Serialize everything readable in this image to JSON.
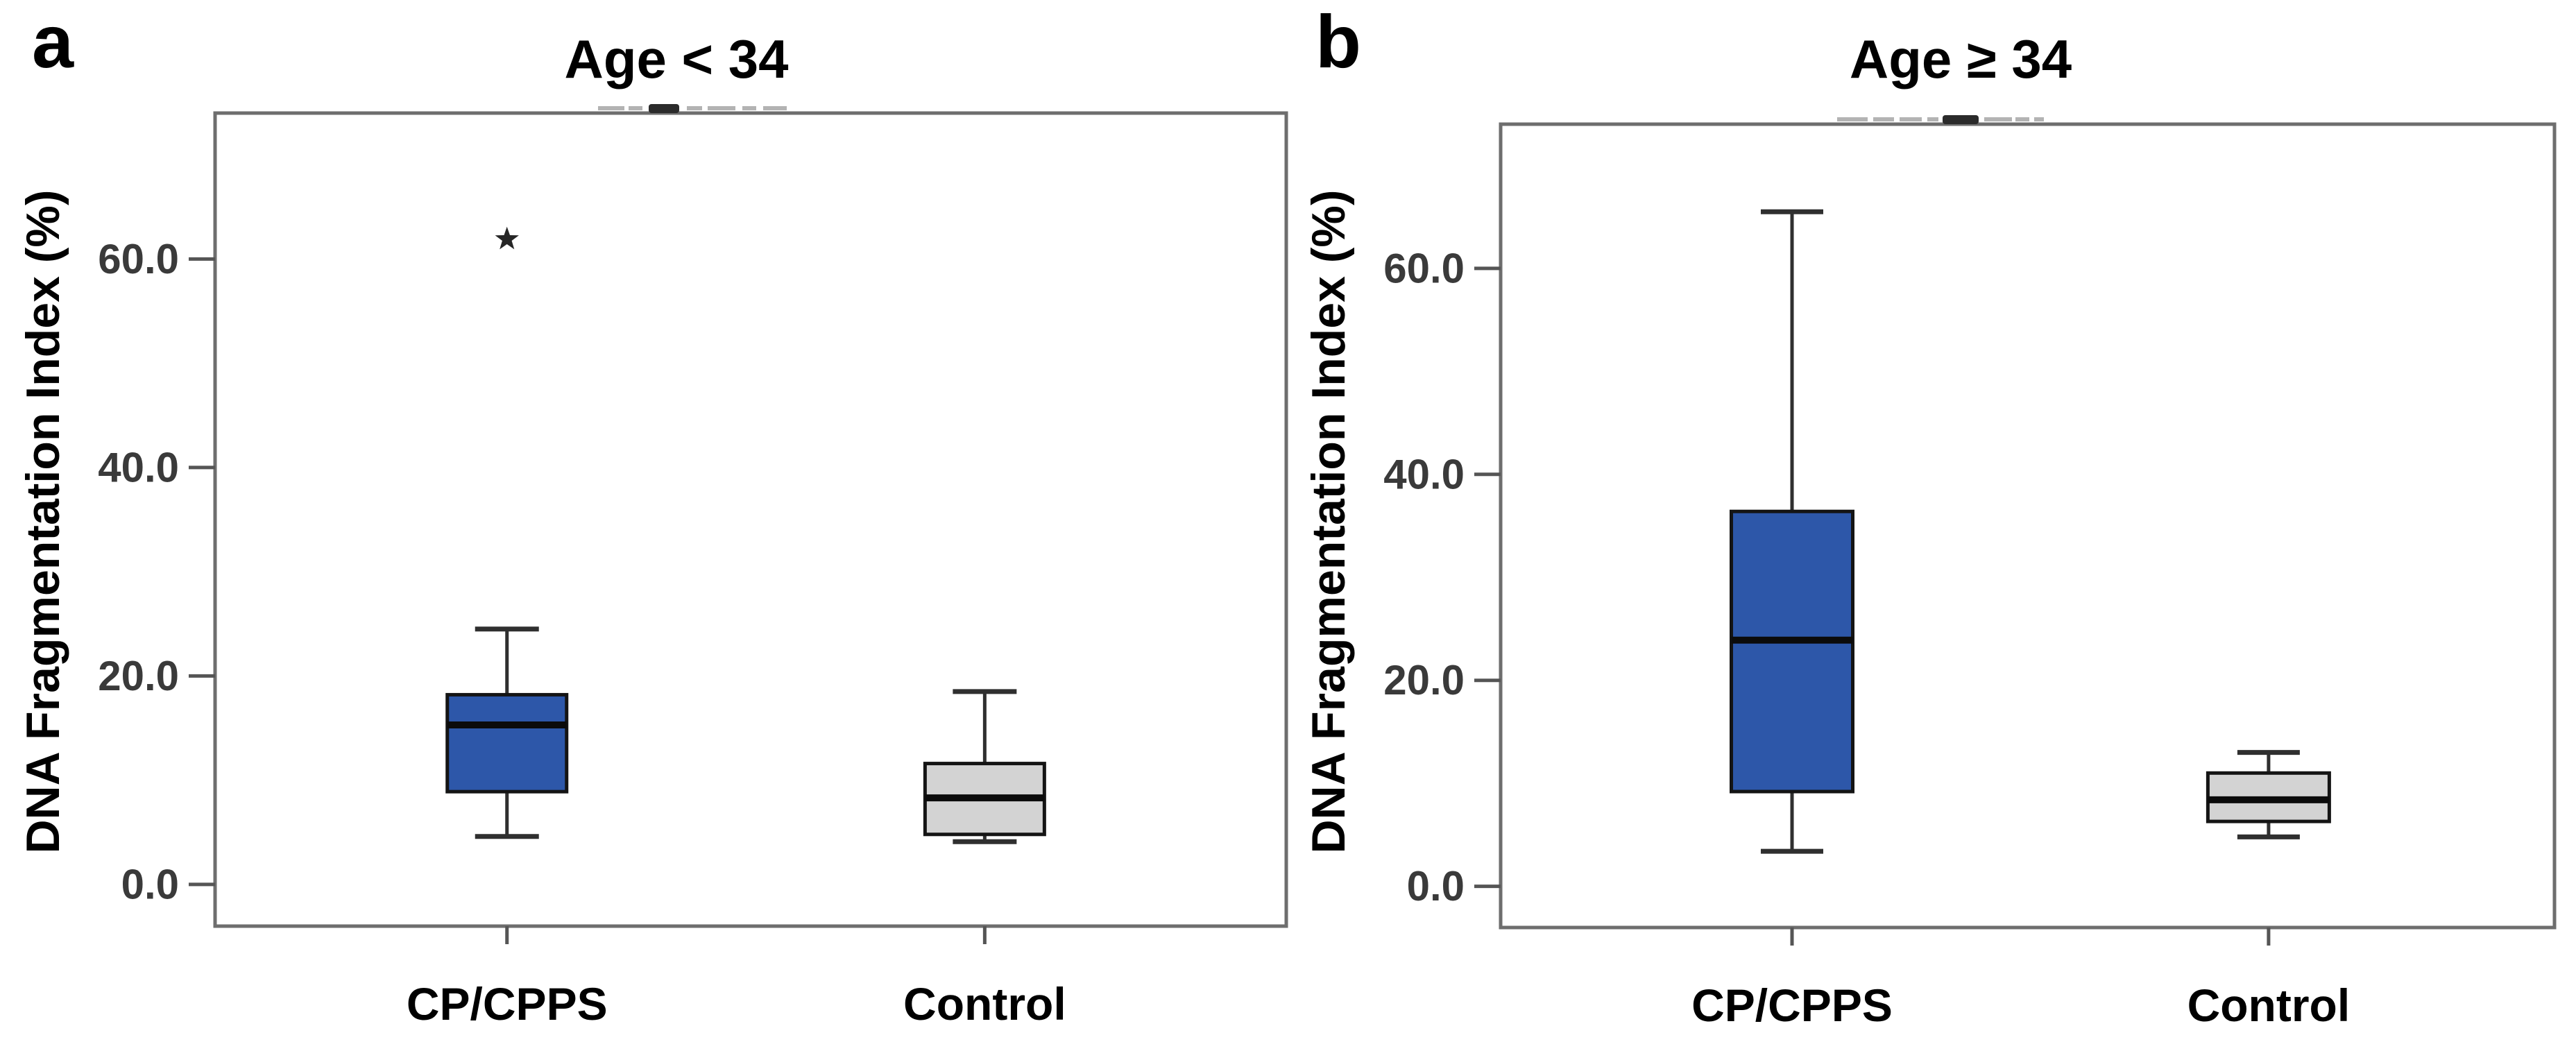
{
  "figure": {
    "colors": {
      "cpcpps_fill": "#2D57A9",
      "control_fill": "#D3D3D3",
      "box_border": "#141414",
      "whisker": "#2F2F2F",
      "median": "#0B0B0B",
      "plot_border": "#6E6E6E",
      "tick_color": "#555555",
      "tick_text": "#3A3A3A",
      "outlier": "#262626",
      "label_text": "#000000"
    }
  },
  "chart_data": [
    {
      "type": "box",
      "panel": "a",
      "letter": "a",
      "title": "Age < 34",
      "ylabel": "DNA Fragmentation Index (%)",
      "ylim": [
        -4,
        74
      ],
      "grid": false,
      "yticks": [
        {
          "value": 0,
          "label": "0.0"
        },
        {
          "value": 20,
          "label": "20.0"
        },
        {
          "value": 40,
          "label": "40.0"
        },
        {
          "value": 60,
          "label": "60.0"
        }
      ],
      "categories": [
        "CP/CPPS",
        "Control"
      ],
      "series": [
        {
          "category": "CP/CPPS",
          "whisker_low": 4.6,
          "q1": 8.9,
          "median": 15.3,
          "q3": 18.2,
          "whisker_high": 24.5,
          "outliers": [
            61.9
          ],
          "fill": "#2D57A9"
        },
        {
          "category": "Control",
          "whisker_low": 4.1,
          "q1": 4.8,
          "median": 8.3,
          "q3": 11.6,
          "whisker_high": 18.5,
          "outliers": [],
          "fill": "#D3D3D3"
        }
      ]
    },
    {
      "type": "box",
      "panel": "b",
      "letter": "b",
      "title": "Age ≥ 34",
      "ylabel": "DNA Fragmentation Index (%)",
      "ylim": [
        -4,
        74
      ],
      "grid": false,
      "yticks": [
        {
          "value": 0,
          "label": "0.0"
        },
        {
          "value": 20,
          "label": "20.0"
        },
        {
          "value": 40,
          "label": "40.0"
        },
        {
          "value": 60,
          "label": "60.0"
        }
      ],
      "categories": [
        "CP/CPPS",
        "Control"
      ],
      "series": [
        {
          "category": "CP/CPPS",
          "whisker_low": 3.4,
          "q1": 9.2,
          "median": 23.9,
          "q3": 36.4,
          "whisker_high": 65.5,
          "outliers": [],
          "fill": "#2D57A9"
        },
        {
          "category": "Control",
          "whisker_low": 4.8,
          "q1": 6.3,
          "median": 8.4,
          "q3": 11.0,
          "whisker_high": 13.0,
          "outliers": [],
          "fill": "#D3D3D3"
        }
      ]
    }
  ]
}
